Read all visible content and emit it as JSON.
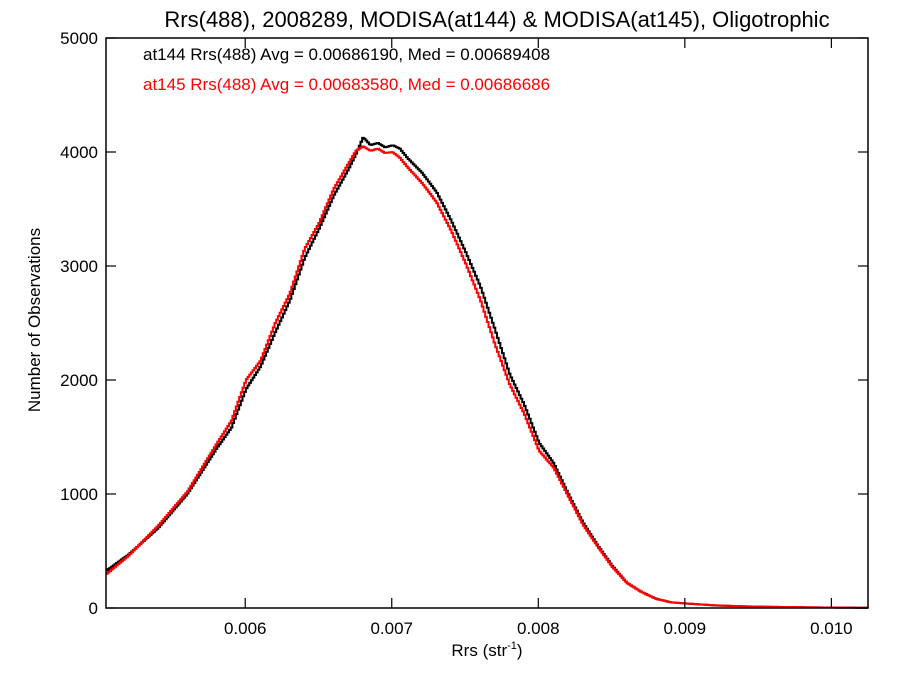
{
  "chart_data": {
    "type": "line",
    "title": "Rrs(488), 2008289, MODISA(at144) & MODISA(at145), Oligotrophic",
    "xlabel": "Rrs (str",
    "xlabel_sup": "-1",
    "xlabel_close": ")",
    "ylabel": "Number of Observations",
    "xlim": [
      0.00505,
      0.01025
    ],
    "ylim": [
      0,
      5000
    ],
    "grid": false,
    "xticks": [
      0.006,
      0.007,
      0.008,
      0.009,
      0.01
    ],
    "xtick_labels": [
      "0.006",
      "0.007",
      "0.008",
      "0.009",
      "0.010"
    ],
    "yticks": [
      0,
      1000,
      2000,
      3000,
      4000,
      5000
    ],
    "ytick_labels": [
      "0",
      "1000",
      "2000",
      "3000",
      "4000",
      "5000"
    ],
    "legend_placement": "top-left",
    "annotations": [
      {
        "text": "at144 Rrs(488) Avg = 0.00686190, Med = 0.00689408",
        "color": "#000000"
      },
      {
        "text": "at145 Rrs(488) Avg = 0.00683580, Med = 0.00686686",
        "color": "#ff0000"
      }
    ],
    "series": [
      {
        "color": "#000000",
        "x": [
          0.00505,
          0.0052,
          0.0054,
          0.0056,
          0.0058,
          0.0059,
          0.006,
          0.0061,
          0.0062,
          0.0063,
          0.0064,
          0.0065,
          0.0066,
          0.0067,
          0.00675,
          0.0068,
          0.00685,
          0.0069,
          0.00695,
          0.007,
          0.00705,
          0.0071,
          0.0072,
          0.0073,
          0.0074,
          0.0075,
          0.0076,
          0.0077,
          0.0078,
          0.0079,
          0.008,
          0.0081,
          0.0082,
          0.0083,
          0.0084,
          0.0085,
          0.0086,
          0.0087,
          0.0088,
          0.0089,
          0.009,
          0.0092,
          0.0094,
          0.0096,
          0.0098,
          0.01,
          0.01025
        ],
        "y": [
          330,
          470,
          700,
          1000,
          1400,
          1580,
          1920,
          2120,
          2420,
          2700,
          3070,
          3330,
          3620,
          3850,
          3980,
          4130,
          4060,
          4080,
          4040,
          4060,
          4030,
          3950,
          3820,
          3650,
          3400,
          3120,
          2820,
          2440,
          2050,
          1780,
          1450,
          1270,
          1000,
          750,
          550,
          370,
          220,
          140,
          80,
          50,
          40,
          22,
          14,
          10,
          6,
          4,
          2
        ]
      },
      {
        "color": "#ff0000",
        "x": [
          0.00505,
          0.0052,
          0.0054,
          0.0056,
          0.0058,
          0.0059,
          0.006,
          0.0061,
          0.0062,
          0.0063,
          0.0064,
          0.0065,
          0.0066,
          0.0067,
          0.00675,
          0.0068,
          0.00685,
          0.0069,
          0.00695,
          0.007,
          0.00705,
          0.0071,
          0.0072,
          0.0073,
          0.0074,
          0.0075,
          0.0076,
          0.0077,
          0.0078,
          0.0079,
          0.008,
          0.0081,
          0.0082,
          0.0083,
          0.0084,
          0.0085,
          0.0086,
          0.0087,
          0.0088,
          0.0089,
          0.009,
          0.0092,
          0.0094,
          0.0096,
          0.0098,
          0.01,
          0.01025
        ],
        "y": [
          300,
          460,
          720,
          1020,
          1440,
          1640,
          2000,
          2170,
          2500,
          2760,
          3150,
          3380,
          3680,
          3900,
          4010,
          4050,
          4010,
          4030,
          3990,
          4000,
          3950,
          3870,
          3730,
          3560,
          3310,
          3020,
          2700,
          2310,
          1960,
          1700,
          1380,
          1230,
          980,
          730,
          540,
          360,
          220,
          140,
          80,
          50,
          40,
          24,
          15,
          10,
          7,
          4,
          2
        ]
      }
    ]
  }
}
